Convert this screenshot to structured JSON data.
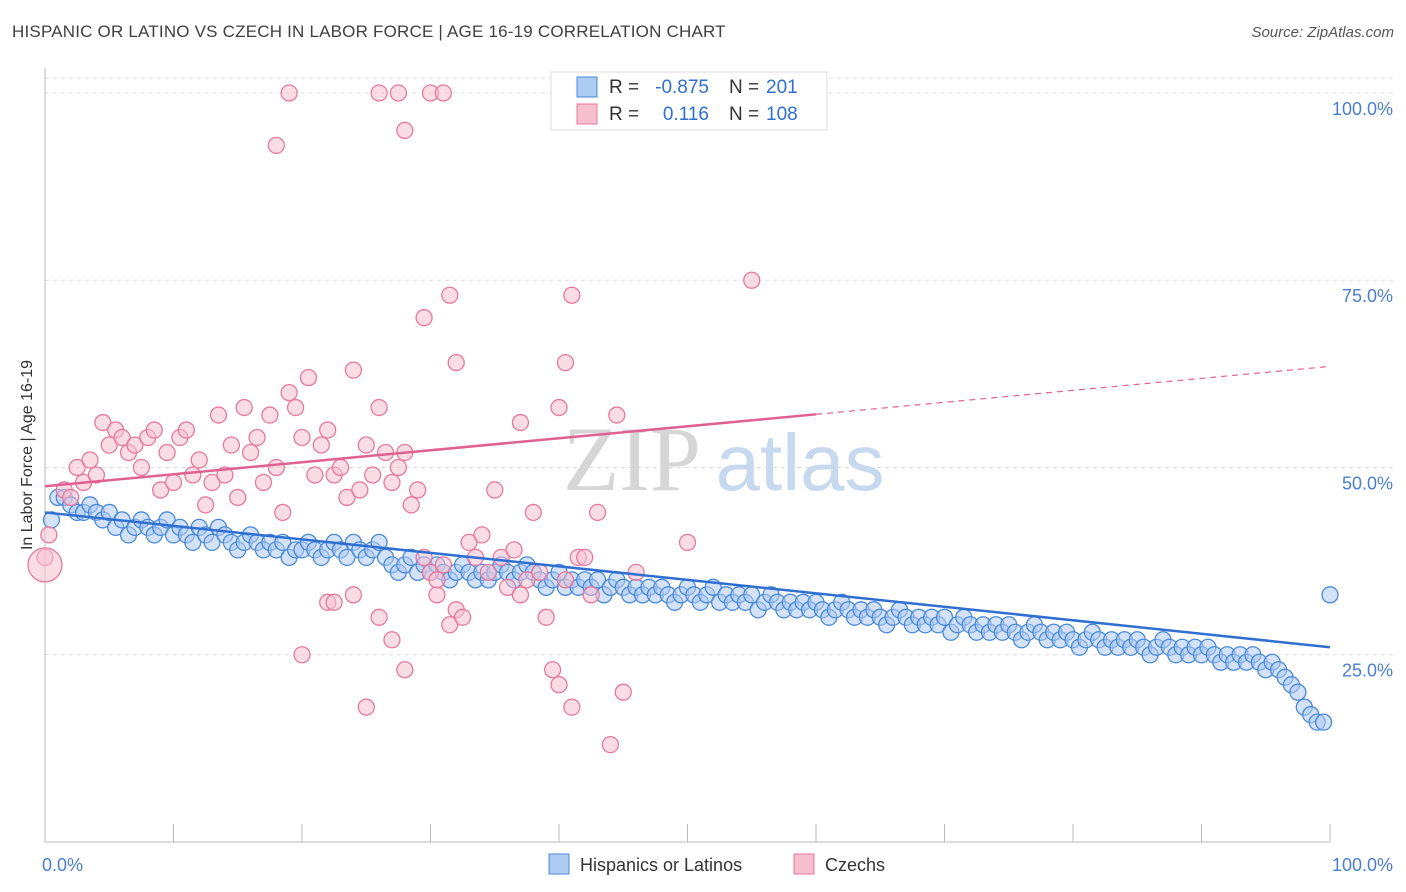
{
  "title": "HISPANIC OR LATINO VS CZECH IN LABOR FORCE | AGE 16-19 CORRELATION CHART",
  "source": "Source: ZipAtlas.com",
  "watermark": {
    "part1": "ZIP",
    "part2": "atlas"
  },
  "colors": {
    "blue": "#4a8ad9",
    "blue_fill": "#aecbf2",
    "blue_line": "#2f6fd1",
    "pink": "#e8799c",
    "pink_fill": "#f6bfd0",
    "pink_line": "#e06090",
    "axis_text": "#4a7fd0"
  },
  "legend_stats": [
    {
      "r_label": "R =",
      "r_value": "-0.875",
      "n_label": "N =",
      "n_value": "201"
    },
    {
      "r_label": "R =",
      "r_value": "0.116",
      "n_label": "N =",
      "n_value": "108"
    }
  ],
  "chart_data": {
    "type": "scatter",
    "title": "HISPANIC OR LATINO VS CZECH IN LABOR FORCE | AGE 16-19 CORRELATION CHART",
    "xlabel": "",
    "ylabel": "In Labor Force | Age 16-19",
    "xlim": [
      0,
      100
    ],
    "ylim": [
      0,
      102
    ],
    "x_tick_labels": [
      "0.0%",
      "100.0%"
    ],
    "y_ticks": [
      25,
      50,
      75,
      100
    ],
    "y_tick_labels": [
      "25.0%",
      "50.0%",
      "75.0%",
      "100.0%"
    ],
    "grid": true,
    "legend_position": "bottom",
    "series": [
      {
        "name": "Hispanics or Latinos",
        "r": -0.875,
        "n": 201,
        "trend": {
          "x": [
            0,
            100
          ],
          "y": [
            44.0,
            26.0
          ],
          "dashed_from": null
        },
        "points": [
          [
            0.5,
            43
          ],
          [
            1,
            46
          ],
          [
            1.5,
            46
          ],
          [
            2,
            45
          ],
          [
            2.5,
            44
          ],
          [
            3,
            44
          ],
          [
            3.5,
            45
          ],
          [
            4,
            44
          ],
          [
            4.5,
            43
          ],
          [
            5,
            44
          ],
          [
            5.5,
            42
          ],
          [
            6,
            43
          ],
          [
            6.5,
            41
          ],
          [
            7,
            42
          ],
          [
            7.5,
            43
          ],
          [
            8,
            42
          ],
          [
            8.5,
            41
          ],
          [
            9,
            42
          ],
          [
            9.5,
            43
          ],
          [
            10,
            41
          ],
          [
            10.5,
            42
          ],
          [
            11,
            41
          ],
          [
            11.5,
            40
          ],
          [
            12,
            42
          ],
          [
            12.5,
            41
          ],
          [
            13,
            40
          ],
          [
            13.5,
            42
          ],
          [
            14,
            41
          ],
          [
            14.5,
            40
          ],
          [
            15,
            39
          ],
          [
            15.5,
            40
          ],
          [
            16,
            41
          ],
          [
            16.5,
            40
          ],
          [
            17,
            39
          ],
          [
            17.5,
            40
          ],
          [
            18,
            39
          ],
          [
            18.5,
            40
          ],
          [
            19,
            38
          ],
          [
            19.5,
            39
          ],
          [
            20,
            39
          ],
          [
            20.5,
            40
          ],
          [
            21,
            39
          ],
          [
            21.5,
            38
          ],
          [
            22,
            39
          ],
          [
            22.5,
            40
          ],
          [
            23,
            39
          ],
          [
            23.5,
            38
          ],
          [
            24,
            40
          ],
          [
            24.5,
            39
          ],
          [
            25,
            38
          ],
          [
            25.5,
            39
          ],
          [
            26,
            40
          ],
          [
            26.5,
            38
          ],
          [
            27,
            37
          ],
          [
            27.5,
            36
          ],
          [
            28,
            37
          ],
          [
            28.5,
            38
          ],
          [
            29,
            36
          ],
          [
            29.5,
            37
          ],
          [
            30,
            36
          ],
          [
            30.5,
            37
          ],
          [
            31,
            36
          ],
          [
            31.5,
            35
          ],
          [
            32,
            36
          ],
          [
            32.5,
            37
          ],
          [
            33,
            36
          ],
          [
            33.5,
            35
          ],
          [
            34,
            36
          ],
          [
            34.5,
            35
          ],
          [
            35,
            36
          ],
          [
            35.5,
            37
          ],
          [
            36,
            36
          ],
          [
            36.5,
            35
          ],
          [
            37,
            36
          ],
          [
            37.5,
            37
          ],
          [
            38,
            36
          ],
          [
            38.5,
            35
          ],
          [
            39,
            34
          ],
          [
            39.5,
            35
          ],
          [
            40,
            36
          ],
          [
            40.5,
            34
          ],
          [
            41,
            35
          ],
          [
            41.5,
            34
          ],
          [
            42,
            35
          ],
          [
            42.5,
            34
          ],
          [
            43,
            35
          ],
          [
            43.5,
            33
          ],
          [
            44,
            34
          ],
          [
            44.5,
            35
          ],
          [
            45,
            34
          ],
          [
            45.5,
            33
          ],
          [
            46,
            34
          ],
          [
            46.5,
            33
          ],
          [
            47,
            34
          ],
          [
            47.5,
            33
          ],
          [
            48,
            34
          ],
          [
            48.5,
            33
          ],
          [
            49,
            32
          ],
          [
            49.5,
            33
          ],
          [
            50,
            34
          ],
          [
            50.5,
            33
          ],
          [
            51,
            32
          ],
          [
            51.5,
            33
          ],
          [
            52,
            34
          ],
          [
            52.5,
            32
          ],
          [
            53,
            33
          ],
          [
            53.5,
            32
          ],
          [
            54,
            33
          ],
          [
            54.5,
            32
          ],
          [
            55,
            33
          ],
          [
            55.5,
            31
          ],
          [
            56,
            32
          ],
          [
            56.5,
            33
          ],
          [
            57,
            32
          ],
          [
            57.5,
            31
          ],
          [
            58,
            32
          ],
          [
            58.5,
            31
          ],
          [
            59,
            32
          ],
          [
            59.5,
            31
          ],
          [
            60,
            32
          ],
          [
            60.5,
            31
          ],
          [
            61,
            30
          ],
          [
            61.5,
            31
          ],
          [
            62,
            32
          ],
          [
            62.5,
            31
          ],
          [
            63,
            30
          ],
          [
            63.5,
            31
          ],
          [
            64,
            30
          ],
          [
            64.5,
            31
          ],
          [
            65,
            30
          ],
          [
            65.5,
            29
          ],
          [
            66,
            30
          ],
          [
            66.5,
            31
          ],
          [
            67,
            30
          ],
          [
            67.5,
            29
          ],
          [
            68,
            30
          ],
          [
            68.5,
            29
          ],
          [
            69,
            30
          ],
          [
            69.5,
            29
          ],
          [
            70,
            30
          ],
          [
            70.5,
            28
          ],
          [
            71,
            29
          ],
          [
            71.5,
            30
          ],
          [
            72,
            29
          ],
          [
            72.5,
            28
          ],
          [
            73,
            29
          ],
          [
            73.5,
            28
          ],
          [
            74,
            29
          ],
          [
            74.5,
            28
          ],
          [
            75,
            29
          ],
          [
            75.5,
            28
          ],
          [
            76,
            27
          ],
          [
            76.5,
            28
          ],
          [
            77,
            29
          ],
          [
            77.5,
            28
          ],
          [
            78,
            27
          ],
          [
            78.5,
            28
          ],
          [
            79,
            27
          ],
          [
            79.5,
            28
          ],
          [
            80,
            27
          ],
          [
            80.5,
            26
          ],
          [
            81,
            27
          ],
          [
            81.5,
            28
          ],
          [
            82,
            27
          ],
          [
            82.5,
            26
          ],
          [
            83,
            27
          ],
          [
            83.5,
            26
          ],
          [
            84,
            27
          ],
          [
            84.5,
            26
          ],
          [
            85,
            27
          ],
          [
            85.5,
            26
          ],
          [
            86,
            25
          ],
          [
            86.5,
            26
          ],
          [
            87,
            27
          ],
          [
            87.5,
            26
          ],
          [
            88,
            25
          ],
          [
            88.5,
            26
          ],
          [
            89,
            25
          ],
          [
            89.5,
            26
          ],
          [
            90,
            25
          ],
          [
            90.5,
            26
          ],
          [
            91,
            25
          ],
          [
            91.5,
            24
          ],
          [
            92,
            25
          ],
          [
            92.5,
            24
          ],
          [
            93,
            25
          ],
          [
            93.5,
            24
          ],
          [
            94,
            25
          ],
          [
            94.5,
            24
          ],
          [
            95,
            23
          ],
          [
            95.5,
            24
          ],
          [
            96,
            23
          ],
          [
            96.5,
            22
          ],
          [
            97,
            21
          ],
          [
            97.5,
            20
          ],
          [
            98,
            18
          ],
          [
            98.5,
            17
          ],
          [
            99,
            16
          ],
          [
            99.5,
            16
          ],
          [
            100,
            33
          ]
        ]
      },
      {
        "name": "Czechs",
        "r": 0.116,
        "n": 108,
        "trend": {
          "x": [
            0,
            100
          ],
          "y": [
            47.5,
            63.5
          ],
          "dashed_from": 60
        },
        "points": [
          [
            0,
            38
          ],
          [
            0.3,
            41
          ],
          [
            1.5,
            47
          ],
          [
            2,
            46
          ],
          [
            2.5,
            50
          ],
          [
            3,
            48
          ],
          [
            3.5,
            51
          ],
          [
            4,
            49
          ],
          [
            4.5,
            56
          ],
          [
            5,
            53
          ],
          [
            5.5,
            55
          ],
          [
            6,
            54
          ],
          [
            6.5,
            52
          ],
          [
            7,
            53
          ],
          [
            7.5,
            50
          ],
          [
            8,
            54
          ],
          [
            8.5,
            55
          ],
          [
            9,
            47
          ],
          [
            9.5,
            52
          ],
          [
            10,
            48
          ],
          [
            10.5,
            54
          ],
          [
            11,
            55
          ],
          [
            11.5,
            49
          ],
          [
            12,
            51
          ],
          [
            12.5,
            45
          ],
          [
            13,
            48
          ],
          [
            13.5,
            57
          ],
          [
            14,
            49
          ],
          [
            14.5,
            53
          ],
          [
            15,
            46
          ],
          [
            15.5,
            58
          ],
          [
            16,
            52
          ],
          [
            16.5,
            54
          ],
          [
            17,
            48
          ],
          [
            17.5,
            57
          ],
          [
            18,
            50
          ],
          [
            18.5,
            44
          ],
          [
            19,
            60
          ],
          [
            19.5,
            58
          ],
          [
            20,
            54
          ],
          [
            20.5,
            62
          ],
          [
            21,
            49
          ],
          [
            21.5,
            53
          ],
          [
            22,
            55
          ],
          [
            22.5,
            49
          ],
          [
            23,
            50
          ],
          [
            23.5,
            46
          ],
          [
            24,
            63
          ],
          [
            24.5,
            47
          ],
          [
            25,
            53
          ],
          [
            25.5,
            49
          ],
          [
            26,
            58
          ],
          [
            26.5,
            52
          ],
          [
            27,
            48
          ],
          [
            27.5,
            50
          ],
          [
            28,
            52
          ],
          [
            28.5,
            45
          ],
          [
            29,
            47
          ],
          [
            29.5,
            38
          ],
          [
            30,
            36
          ],
          [
            30.5,
            33
          ],
          [
            31,
            37
          ],
          [
            31.5,
            29
          ],
          [
            32,
            31
          ],
          [
            32.5,
            30
          ],
          [
            33,
            40
          ],
          [
            33.5,
            38
          ],
          [
            34,
            41
          ],
          [
            34.5,
            36
          ],
          [
            35,
            47
          ],
          [
            35.5,
            38
          ],
          [
            36,
            34
          ],
          [
            36.5,
            39
          ],
          [
            37,
            33
          ],
          [
            37.5,
            35
          ],
          [
            38,
            44
          ],
          [
            38.5,
            36
          ],
          [
            39,
            30
          ],
          [
            39.5,
            23
          ],
          [
            40,
            21
          ],
          [
            40.5,
            35
          ],
          [
            41,
            18
          ],
          [
            41.5,
            38
          ],
          [
            42,
            38
          ],
          [
            42.5,
            33
          ],
          [
            43,
            44
          ],
          [
            44,
            13
          ],
          [
            45,
            20
          ],
          [
            46,
            36
          ],
          [
            18,
            93
          ],
          [
            19,
            100
          ],
          [
            26,
            100
          ],
          [
            27.5,
            100
          ],
          [
            28,
            95
          ],
          [
            30,
            100
          ],
          [
            31,
            100
          ],
          [
            29.5,
            70
          ],
          [
            31.5,
            73
          ],
          [
            32,
            64
          ],
          [
            40.5,
            64
          ],
          [
            41,
            73
          ],
          [
            37,
            56
          ],
          [
            40,
            58
          ],
          [
            44.5,
            57
          ],
          [
            50,
            40
          ],
          [
            52,
            100
          ],
          [
            55,
            75
          ],
          [
            20,
            25
          ],
          [
            22,
            32
          ],
          [
            24,
            33
          ],
          [
            25,
            18
          ],
          [
            26,
            30
          ],
          [
            27,
            27
          ],
          [
            28,
            23
          ],
          [
            22.5,
            32
          ],
          [
            30.5,
            35
          ]
        ]
      }
    ]
  },
  "legend_bottom": [
    {
      "label": "Hispanics or Latinos"
    },
    {
      "label": "Czechs"
    }
  ]
}
